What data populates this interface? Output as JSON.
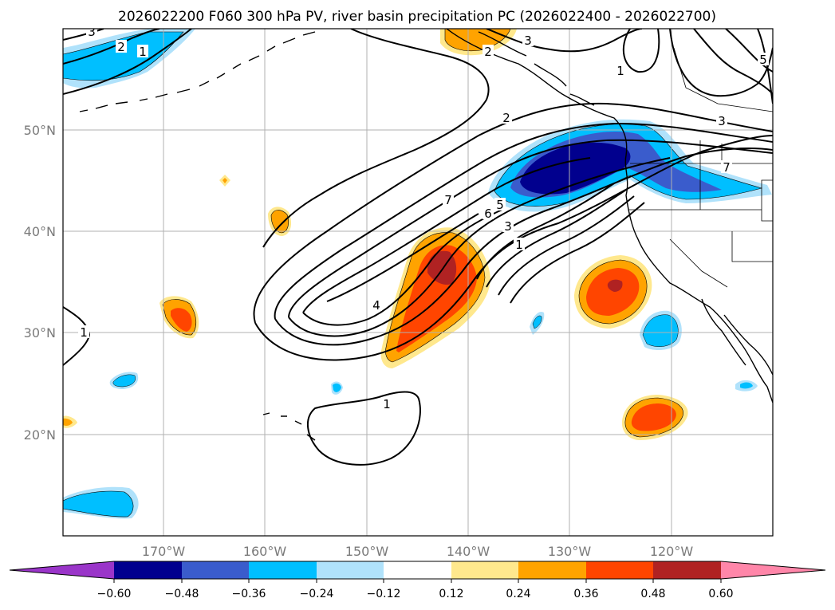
{
  "title": "2026022200 F060 300 hPa PV, river basin precipitation PC (2026022400 - 2026022700)",
  "lat_labels": [
    "50°N",
    "40°N",
    "30°N",
    "20°N"
  ],
  "lon_labels": [
    "170°W",
    "160°W",
    "150°W",
    "140°W",
    "130°W",
    "120°W"
  ],
  "colorbar": {
    "tick_labels": [
      "−0.60",
      "−0.48",
      "−0.36",
      "−0.24",
      "−0.12",
      "0.12",
      "0.24",
      "0.36",
      "0.48",
      "0.60"
    ],
    "colors": [
      "#9a35c9",
      "#01008e",
      "#3a5ccc",
      "#00bfff",
      "#b0e2fb",
      "#ffffff",
      "#ffe88d",
      "#ffa300",
      "#ff4500",
      "#b02222",
      "#ff86a9"
    ]
  },
  "pv_contour_labels": [
    "3",
    "2",
    "1",
    "2",
    "3",
    "1",
    "5",
    "3",
    "2",
    "7",
    "6",
    "5",
    "3",
    "1",
    "4",
    "1",
    "1",
    "7"
  ]
}
